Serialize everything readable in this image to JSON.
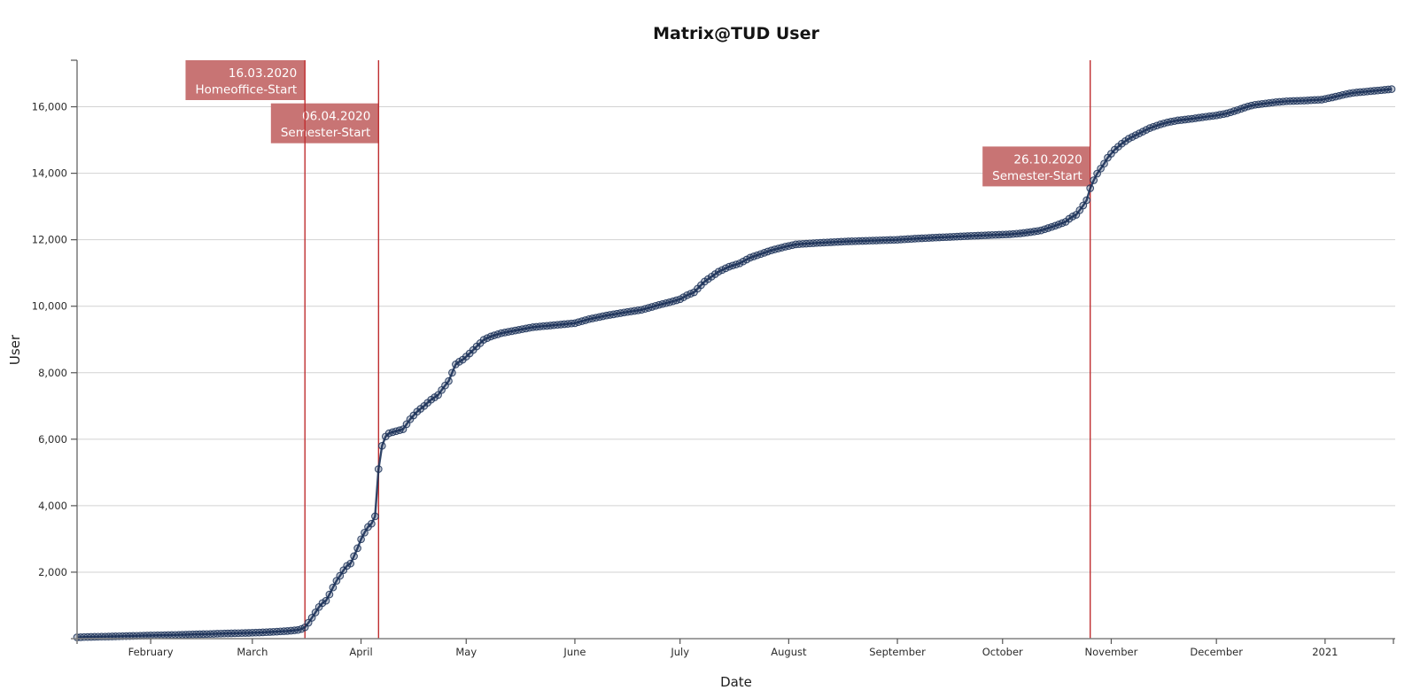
{
  "chart_data": {
    "type": "scatter",
    "title": "Matrix@TUD User",
    "xlabel": "Date",
    "ylabel": "User",
    "xlim": [
      "2020-01-11",
      "2021-01-21"
    ],
    "ylim": [
      0,
      17400
    ],
    "grid": "horizontal-only",
    "legend": "none",
    "yticks": [
      {
        "v": 2000,
        "label": "2,000"
      },
      {
        "v": 4000,
        "label": "4,000"
      },
      {
        "v": 6000,
        "label": "6,000"
      },
      {
        "v": 8000,
        "label": "8,000"
      },
      {
        "v": 10000,
        "label": "10,000"
      },
      {
        "v": 12000,
        "label": "12,000"
      },
      {
        "v": 14000,
        "label": "14,000"
      },
      {
        "v": 16000,
        "label": "16,000"
      }
    ],
    "xticks": [
      {
        "date": "2020-02-01",
        "label": "February"
      },
      {
        "date": "2020-03-01",
        "label": "March"
      },
      {
        "date": "2020-04-01",
        "label": "April"
      },
      {
        "date": "2020-05-01",
        "label": "May"
      },
      {
        "date": "2020-06-01",
        "label": "June"
      },
      {
        "date": "2020-07-01",
        "label": "July"
      },
      {
        "date": "2020-08-01",
        "label": "August"
      },
      {
        "date": "2020-09-01",
        "label": "September"
      },
      {
        "date": "2020-10-01",
        "label": "October"
      },
      {
        "date": "2020-11-01",
        "label": "November"
      },
      {
        "date": "2020-12-01",
        "label": "December"
      },
      {
        "date": "2021-01-01",
        "label": "2021"
      }
    ],
    "annotations": [
      {
        "date": "2020-03-16",
        "lines": [
          "16.03.2020",
          "Homeoffice-Start"
        ]
      },
      {
        "date": "2020-04-06",
        "lines": [
          "06.04.2020",
          "Semester-Start"
        ]
      },
      {
        "date": "2020-10-26",
        "lines": [
          "26.10.2020",
          "Semester-Start"
        ]
      }
    ],
    "series": [
      {
        "name": "User",
        "points": [
          [
            "2020-01-11",
            40
          ],
          [
            "2020-01-14",
            50
          ],
          [
            "2020-01-18",
            60
          ],
          [
            "2020-01-22",
            70
          ],
          [
            "2020-01-26",
            80
          ],
          [
            "2020-02-01",
            95
          ],
          [
            "2020-02-05",
            105
          ],
          [
            "2020-02-09",
            115
          ],
          [
            "2020-02-14",
            130
          ],
          [
            "2020-02-19",
            145
          ],
          [
            "2020-02-24",
            160
          ],
          [
            "2020-02-28",
            170
          ],
          [
            "2020-03-03",
            185
          ],
          [
            "2020-03-07",
            205
          ],
          [
            "2020-03-11",
            230
          ],
          [
            "2020-03-14",
            260
          ],
          [
            "2020-03-15",
            290
          ],
          [
            "2020-03-16",
            340
          ],
          [
            "2020-03-17",
            480
          ],
          [
            "2020-03-18",
            630
          ],
          [
            "2020-03-19",
            790
          ],
          [
            "2020-03-20",
            950
          ],
          [
            "2020-03-21",
            1070
          ],
          [
            "2020-03-22",
            1140
          ],
          [
            "2020-03-23",
            1330
          ],
          [
            "2020-03-24",
            1540
          ],
          [
            "2020-03-25",
            1740
          ],
          [
            "2020-03-26",
            1890
          ],
          [
            "2020-03-27",
            2060
          ],
          [
            "2020-03-28",
            2190
          ],
          [
            "2020-03-29",
            2260
          ],
          [
            "2020-03-30",
            2480
          ],
          [
            "2020-03-31",
            2720
          ],
          [
            "2020-04-01",
            2990
          ],
          [
            "2020-04-02",
            3190
          ],
          [
            "2020-04-03",
            3360
          ],
          [
            "2020-04-04",
            3460
          ],
          [
            "2020-04-05",
            3680
          ],
          [
            "2020-04-06",
            5100
          ],
          [
            "2020-04-07",
            5800
          ],
          [
            "2020-04-08",
            6080
          ],
          [
            "2020-04-09",
            6180
          ],
          [
            "2020-04-11",
            6240
          ],
          [
            "2020-04-13",
            6300
          ],
          [
            "2020-04-14",
            6450
          ],
          [
            "2020-04-15",
            6600
          ],
          [
            "2020-04-17",
            6830
          ],
          [
            "2020-04-19",
            7000
          ],
          [
            "2020-04-21",
            7190
          ],
          [
            "2020-04-23",
            7330
          ],
          [
            "2020-04-24",
            7480
          ],
          [
            "2020-04-26",
            7750
          ],
          [
            "2020-04-28",
            8250
          ],
          [
            "2020-04-29",
            8330
          ],
          [
            "2020-04-30",
            8390
          ],
          [
            "2020-05-02",
            8580
          ],
          [
            "2020-05-04",
            8790
          ],
          [
            "2020-05-06",
            8990
          ],
          [
            "2020-05-08",
            9090
          ],
          [
            "2020-05-11",
            9190
          ],
          [
            "2020-05-15",
            9270
          ],
          [
            "2020-05-20",
            9370
          ],
          [
            "2020-05-25",
            9420
          ],
          [
            "2020-05-29",
            9460
          ],
          [
            "2020-06-01",
            9490
          ],
          [
            "2020-06-05",
            9610
          ],
          [
            "2020-06-10",
            9720
          ],
          [
            "2020-06-15",
            9810
          ],
          [
            "2020-06-20",
            9890
          ],
          [
            "2020-06-25",
            10040
          ],
          [
            "2020-06-28",
            10120
          ],
          [
            "2020-07-01",
            10210
          ],
          [
            "2020-07-03",
            10330
          ],
          [
            "2020-07-05",
            10420
          ],
          [
            "2020-07-08",
            10740
          ],
          [
            "2020-07-10",
            10890
          ],
          [
            "2020-07-12",
            11040
          ],
          [
            "2020-07-15",
            11190
          ],
          [
            "2020-07-18",
            11290
          ],
          [
            "2020-07-21",
            11460
          ],
          [
            "2020-07-24",
            11570
          ],
          [
            "2020-07-27",
            11680
          ],
          [
            "2020-07-31",
            11790
          ],
          [
            "2020-08-03",
            11860
          ],
          [
            "2020-08-07",
            11890
          ],
          [
            "2020-08-12",
            11920
          ],
          [
            "2020-08-18",
            11950
          ],
          [
            "2020-08-25",
            11975
          ],
          [
            "2020-09-01",
            12000
          ],
          [
            "2020-09-07",
            12040
          ],
          [
            "2020-09-12",
            12065
          ],
          [
            "2020-09-18",
            12095
          ],
          [
            "2020-09-24",
            12125
          ],
          [
            "2020-09-30",
            12150
          ],
          [
            "2020-10-03",
            12165
          ],
          [
            "2020-10-06",
            12190
          ],
          [
            "2020-10-09",
            12230
          ],
          [
            "2020-10-12",
            12280
          ],
          [
            "2020-10-14",
            12350
          ],
          [
            "2020-10-16",
            12420
          ],
          [
            "2020-10-18",
            12500
          ],
          [
            "2020-10-19",
            12540
          ],
          [
            "2020-10-20",
            12630
          ],
          [
            "2020-10-21",
            12700
          ],
          [
            "2020-10-22",
            12750
          ],
          [
            "2020-10-23",
            12890
          ],
          [
            "2020-10-24",
            13030
          ],
          [
            "2020-10-25",
            13190
          ],
          [
            "2020-10-26",
            13550
          ],
          [
            "2020-10-27",
            13790
          ],
          [
            "2020-10-28",
            13990
          ],
          [
            "2020-10-29",
            14140
          ],
          [
            "2020-10-30",
            14290
          ],
          [
            "2020-10-31",
            14470
          ],
          [
            "2020-11-01",
            14590
          ],
          [
            "2020-11-02",
            14710
          ],
          [
            "2020-11-04",
            14890
          ],
          [
            "2020-11-06",
            15040
          ],
          [
            "2020-11-09",
            15200
          ],
          [
            "2020-11-12",
            15360
          ],
          [
            "2020-11-15",
            15470
          ],
          [
            "2020-11-17",
            15530
          ],
          [
            "2020-11-20",
            15590
          ],
          [
            "2020-11-24",
            15640
          ],
          [
            "2020-11-28",
            15700
          ],
          [
            "2020-12-01",
            15740
          ],
          [
            "2020-12-04",
            15800
          ],
          [
            "2020-12-07",
            15900
          ],
          [
            "2020-12-10",
            16010
          ],
          [
            "2020-12-12",
            16060
          ],
          [
            "2020-12-15",
            16100
          ],
          [
            "2020-12-18",
            16140
          ],
          [
            "2020-12-21",
            16165
          ],
          [
            "2020-12-26",
            16185
          ],
          [
            "2020-12-31",
            16215
          ],
          [
            "2021-01-03",
            16280
          ],
          [
            "2021-01-05",
            16330
          ],
          [
            "2021-01-07",
            16380
          ],
          [
            "2021-01-09",
            16420
          ],
          [
            "2021-01-12",
            16450
          ],
          [
            "2021-01-15",
            16480
          ],
          [
            "2021-01-18",
            16510
          ],
          [
            "2021-01-20",
            16530
          ]
        ]
      }
    ],
    "colors": {
      "series_line": "#1b3158",
      "marker_fill": "rgba(27,49,88,0.28)",
      "marker_stroke": "rgba(27,49,88,0.85)",
      "vline": "#bf2e30",
      "annotation_box": "#c87474",
      "annotation_text": "#ffffff",
      "grid": "#d2d2d2",
      "axis": "#808080",
      "tick": "#555555",
      "tick_label": "#2b2b2b",
      "title": "#141414"
    }
  }
}
